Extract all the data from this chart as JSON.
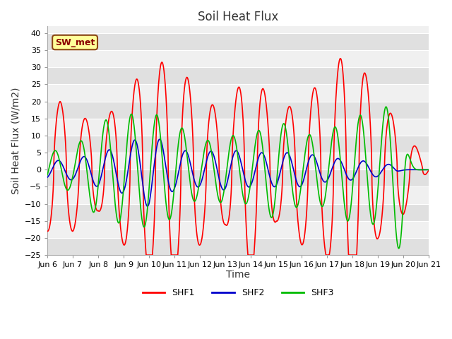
{
  "title": "Soil Heat Flux",
  "ylabel": "Soil Heat Flux (W/m2)",
  "xlabel": "Time",
  "xlim_start": 0,
  "xlim_end": 15,
  "ylim": [
    -25,
    42
  ],
  "yticks": [
    -25,
    -20,
    -15,
    -10,
    -5,
    0,
    5,
    10,
    15,
    20,
    25,
    30,
    35,
    40
  ],
  "xtick_labels": [
    "Jun 6",
    "Jun 7",
    "Jun 8",
    "Jun 9",
    "Jun 10",
    "Jun 11",
    "Jun 12",
    "Jun 13",
    "Jun 14",
    "Jun 15",
    "Jun 16",
    "Jun 17",
    "Jun 18",
    "Jun 19",
    "Jun 20",
    "Jun 21"
  ],
  "xtick_positions": [
    0,
    1,
    2,
    3,
    4,
    5,
    6,
    7,
    8,
    9,
    10,
    11,
    12,
    13,
    14,
    15
  ],
  "color_shf1": "#FF0000",
  "color_shf2": "#0000CC",
  "color_shf3": "#00BB00",
  "fig_bg_color": "#FFFFFF",
  "plot_bg_color": "#F0F0F0",
  "grid_color": "#FFFFFF",
  "band_color_light": "#F0F0F0",
  "band_color_dark": "#E0E0E0",
  "legend_label_shf1": "SHF1",
  "legend_label_shf2": "SHF2",
  "legend_label_shf3": "SHF3",
  "annotation_text": "SW_met",
  "annotation_bg": "#FFFF99",
  "annotation_border": "#8B4513",
  "title_fontsize": 12,
  "axis_label_fontsize": 10,
  "tick_fontsize": 8
}
